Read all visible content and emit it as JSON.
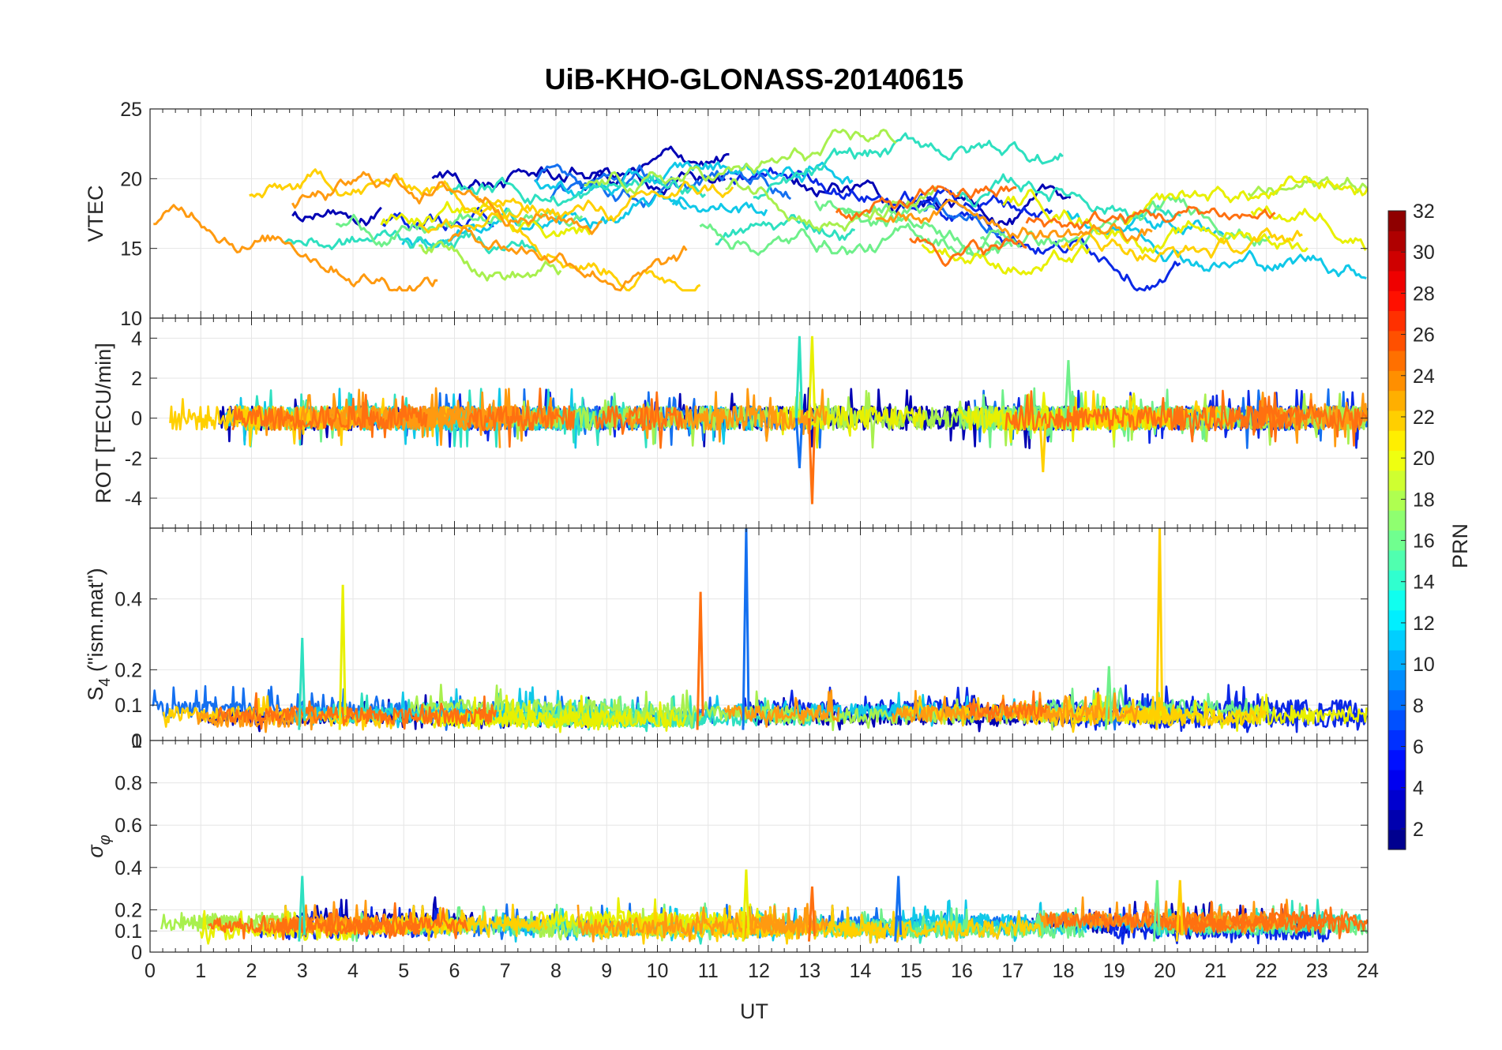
{
  "chart_data": {
    "type": "line",
    "title": "UiB-KHO-GLONASS-20140615",
    "xlabel": "UT",
    "xlim": [
      0,
      24
    ],
    "xticks": [
      "0",
      "1",
      "2",
      "3",
      "4",
      "5",
      "6",
      "7",
      "8",
      "9",
      "10",
      "11",
      "12",
      "13",
      "14",
      "15",
      "16",
      "17",
      "18",
      "19",
      "20",
      "21",
      "22",
      "23",
      "24"
    ],
    "grid": true,
    "panels": [
      {
        "id": "vtec",
        "ylabel": "VTEC",
        "ylim": [
          10,
          25
        ],
        "yticks": [
          "10",
          "15",
          "20",
          "25"
        ],
        "typical_range": [
          12,
          23.5
        ],
        "notes": "VTEC per satellite, mostly 14-22 TECU"
      },
      {
        "id": "rot",
        "ylabel": "ROT [TECU/min]",
        "ylim": [
          -5.5,
          5
        ],
        "yticks": [
          "-4",
          "-2",
          "0",
          "2",
          "4"
        ],
        "typical_range": [
          -1.5,
          1.5
        ],
        "spikes": [
          {
            "ut": 12.8,
            "value": 4.1
          },
          {
            "ut": 13.05,
            "value": 4.1
          },
          {
            "ut": 13.05,
            "value": -4.3
          },
          {
            "ut": 12.8,
            "value": -2.5
          },
          {
            "ut": 18.1,
            "value": 2.9
          },
          {
            "ut": 17.6,
            "value": -2.7
          }
        ]
      },
      {
        "id": "s4",
        "ylabel_main": "S",
        "ylabel_sub": "4",
        "ylabel_rest": " (\"ism.mat\")",
        "ylim": [
          0,
          0.6
        ],
        "yticks": [
          "0",
          "0.1",
          "0.2",
          "0.4"
        ],
        "typical_range": [
          0.03,
          0.12
        ],
        "spikes": [
          {
            "ut": 3.0,
            "value": 0.29
          },
          {
            "ut": 3.8,
            "value": 0.44
          },
          {
            "ut": 10.85,
            "value": 0.42
          },
          {
            "ut": 11.75,
            "value": 0.6
          },
          {
            "ut": 18.9,
            "value": 0.21
          },
          {
            "ut": 19.9,
            "value": 0.6
          }
        ]
      },
      {
        "id": "sigma",
        "ylabel_main": "σ",
        "ylabel_sub": "φ",
        "ylim": [
          0,
          1
        ],
        "yticks": [
          "0",
          "0.1",
          "0.2",
          "0.4",
          "0.6",
          "0.8",
          "1"
        ],
        "typical_range": [
          0.05,
          0.2
        ],
        "spikes": [
          {
            "ut": 3.0,
            "value": 0.36
          },
          {
            "ut": 11.75,
            "value": 0.39
          },
          {
            "ut": 13.05,
            "value": 0.31
          },
          {
            "ut": 14.75,
            "value": 0.36
          },
          {
            "ut": 19.85,
            "value": 0.34
          },
          {
            "ut": 20.3,
            "value": 0.34
          }
        ]
      }
    ],
    "colorbar": {
      "label": "PRN",
      "range": [
        1,
        32
      ],
      "ticks": [
        "2",
        "4",
        "6",
        "8",
        "10",
        "12",
        "14",
        "16",
        "18",
        "20",
        "22",
        "24",
        "26",
        "28",
        "30",
        "32"
      ],
      "colormap": "jet"
    },
    "series": [
      {
        "prn": 2,
        "color": "#0000b4"
      },
      {
        "prn": 5,
        "color": "#0a28e6"
      },
      {
        "prn": 8,
        "color": "#1470f0"
      },
      {
        "prn": 11,
        "color": "#10c8e8"
      },
      {
        "prn": 13,
        "color": "#2ee0c0"
      },
      {
        "prn": 15,
        "color": "#6ef08a"
      },
      {
        "prn": 17,
        "color": "#a8f04e"
      },
      {
        "prn": 19,
        "color": "#e8f000"
      },
      {
        "prn": 21,
        "color": "#ffd000"
      },
      {
        "prn": 23,
        "color": "#ff9a10"
      },
      {
        "prn": 24,
        "color": "#ff7010"
      }
    ]
  }
}
